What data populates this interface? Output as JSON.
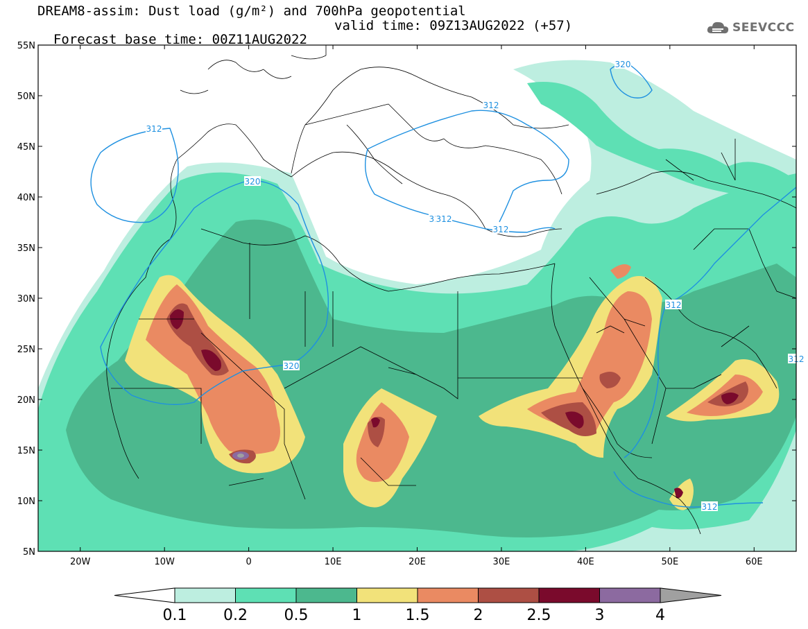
{
  "header": {
    "line1": "DREAM8-assim: Dust load (g/m²) and 700hPa geopotential",
    "line2_left": "Forecast base time: 00Z11AUG2022",
    "line2_right": "valid time: 09Z13AUG2022 (+57)"
  },
  "logo": {
    "text": "SEEVCCC",
    "icon": "cloud-icon"
  },
  "map": {
    "lon_range": [
      -25,
      65
    ],
    "lat_range": [
      5,
      55
    ],
    "lat_ticks": [
      "55N",
      "50N",
      "45N",
      "40N",
      "35N",
      "30N",
      "25N",
      "20N",
      "15N",
      "10N",
      "5N"
    ],
    "lon_ticks": [
      "20W",
      "10W",
      "0",
      "10E",
      "20E",
      "30E",
      "40E",
      "50E",
      "60E"
    ],
    "contour_labels": [
      "312",
      "320",
      "320",
      "312",
      "312",
      "320",
      "312",
      "312",
      "312",
      "312",
      "312"
    ],
    "contour_color": "#1e90e0"
  },
  "colorbar": {
    "labels": [
      "0.1",
      "0.2",
      "0.5",
      "1",
      "1.5",
      "2",
      "2.5",
      "3",
      "4"
    ],
    "colors": [
      "#bdeee0",
      "#5ee0b4",
      "#4cb88e",
      "#f2e27a",
      "#ea8a62",
      "#ad4f44",
      "#7a0a2c",
      "#8c6aa0"
    ],
    "end_low_color": "#ffffff",
    "end_high_color": "#a0a0a0"
  }
}
